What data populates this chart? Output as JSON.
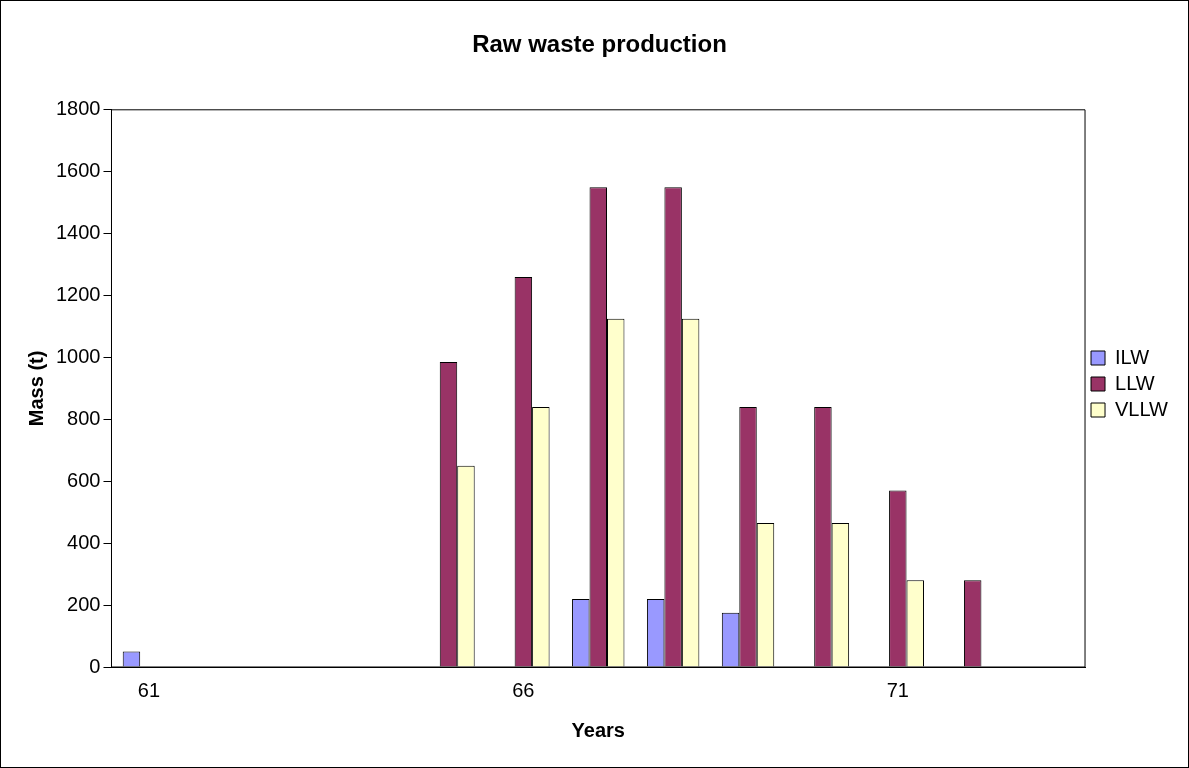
{
  "chart_data": {
    "type": "bar",
    "title": "Raw waste production",
    "xlabel": "Years",
    "ylabel": "Mass (t)",
    "categories": [
      "61",
      null,
      null,
      null,
      null,
      "66",
      null,
      null,
      null,
      null,
      "71",
      null,
      null
    ],
    "series": [
      {
        "name": "ILW",
        "color": "#9999ff",
        "values": [
          50,
          0,
          0,
          0,
          0,
          0,
          220,
          220,
          175,
          0,
          0,
          0,
          0
        ]
      },
      {
        "name": "LLW",
        "color": "#993366",
        "values": [
          0,
          0,
          0,
          0,
          985,
          1260,
          1550,
          1550,
          840,
          840,
          570,
          280,
          0
        ]
      },
      {
        "name": "VLLW",
        "color": "#ffffcc",
        "values": [
          0,
          0,
          0,
          0,
          650,
          840,
          1125,
          1125,
          465,
          465,
          280,
          0,
          0
        ]
      }
    ],
    "ylim": [
      0,
      1800
    ],
    "yticks": [
      0,
      200,
      400,
      600,
      800,
      1000,
      1200,
      1400,
      1600,
      1800
    ],
    "grid": false,
    "legend": "right"
  }
}
